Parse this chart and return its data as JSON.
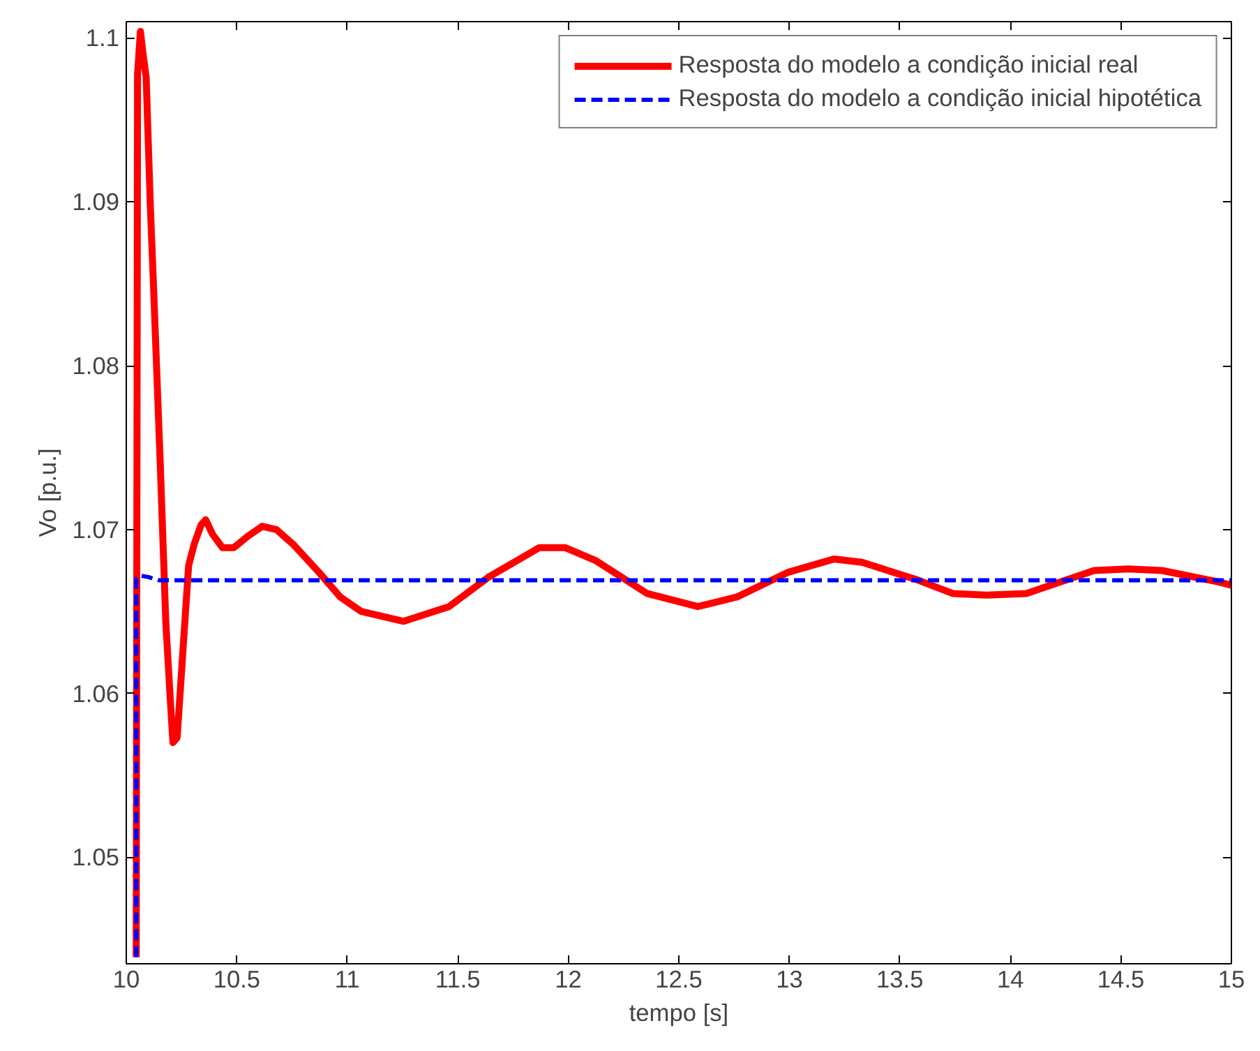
{
  "chart_data": {
    "type": "line",
    "xlabel": "tempo [s]",
    "ylabel": "Vo [p.u.]",
    "xlim": [
      10,
      15
    ],
    "ylim": [
      1.0435,
      1.101
    ],
    "xticks": [
      10,
      10.5,
      11,
      11.5,
      12,
      12.5,
      13,
      13.5,
      14,
      14.5,
      15
    ],
    "yticks": [
      1.05,
      1.06,
      1.07,
      1.08,
      1.09,
      1.1
    ],
    "grid": false,
    "legend": "top right",
    "series": [
      {
        "name": "Resposta do modelo a condição inicial real",
        "color": "#ff0000",
        "line_style": "solid",
        "x": [
          10.045,
          10.051,
          10.064,
          10.077,
          10.09,
          10.109,
          10.122,
          10.154,
          10.179,
          10.198,
          10.211,
          10.23,
          10.243,
          10.282,
          10.307,
          10.339,
          10.359,
          10.391,
          10.435,
          10.487,
          10.551,
          10.615,
          10.679,
          10.755,
          10.871,
          10.967,
          11.063,
          11.255,
          11.46,
          11.639,
          11.869,
          11.985,
          12.125,
          12.356,
          12.586,
          12.766,
          12.996,
          13.201,
          13.329,
          13.585,
          13.739,
          13.892,
          14.072,
          14.379,
          14.533,
          14.686,
          14.942,
          15.0
        ],
        "values": [
          1.0439,
          1.0978,
          1.1004,
          1.0989,
          1.0976,
          1.0897,
          1.0853,
          1.0739,
          1.0643,
          1.0599,
          1.057,
          1.0573,
          1.0599,
          1.0678,
          1.0691,
          1.0703,
          1.0706,
          1.0697,
          1.0689,
          1.0689,
          1.0696,
          1.0702,
          1.07,
          1.0691,
          1.0674,
          1.0659,
          1.065,
          1.0644,
          1.0653,
          1.0671,
          1.0689,
          1.0689,
          1.0681,
          1.0661,
          1.0653,
          1.0659,
          1.0674,
          1.0682,
          1.068,
          1.0669,
          1.0661,
          1.066,
          1.0661,
          1.0675,
          1.0676,
          1.0675,
          1.0668,
          1.0666
        ]
      },
      {
        "name": "Resposta do modelo a condição inicial hipotética",
        "color": "#0000ff",
        "line_style": "dashed",
        "x": [
          10.045,
          10.045,
          10.06,
          10.1,
          10.15,
          15.0
        ],
        "values": [
          1.0439,
          1.067,
          1.0672,
          1.0671,
          1.0669,
          1.0669
        ]
      }
    ]
  }
}
